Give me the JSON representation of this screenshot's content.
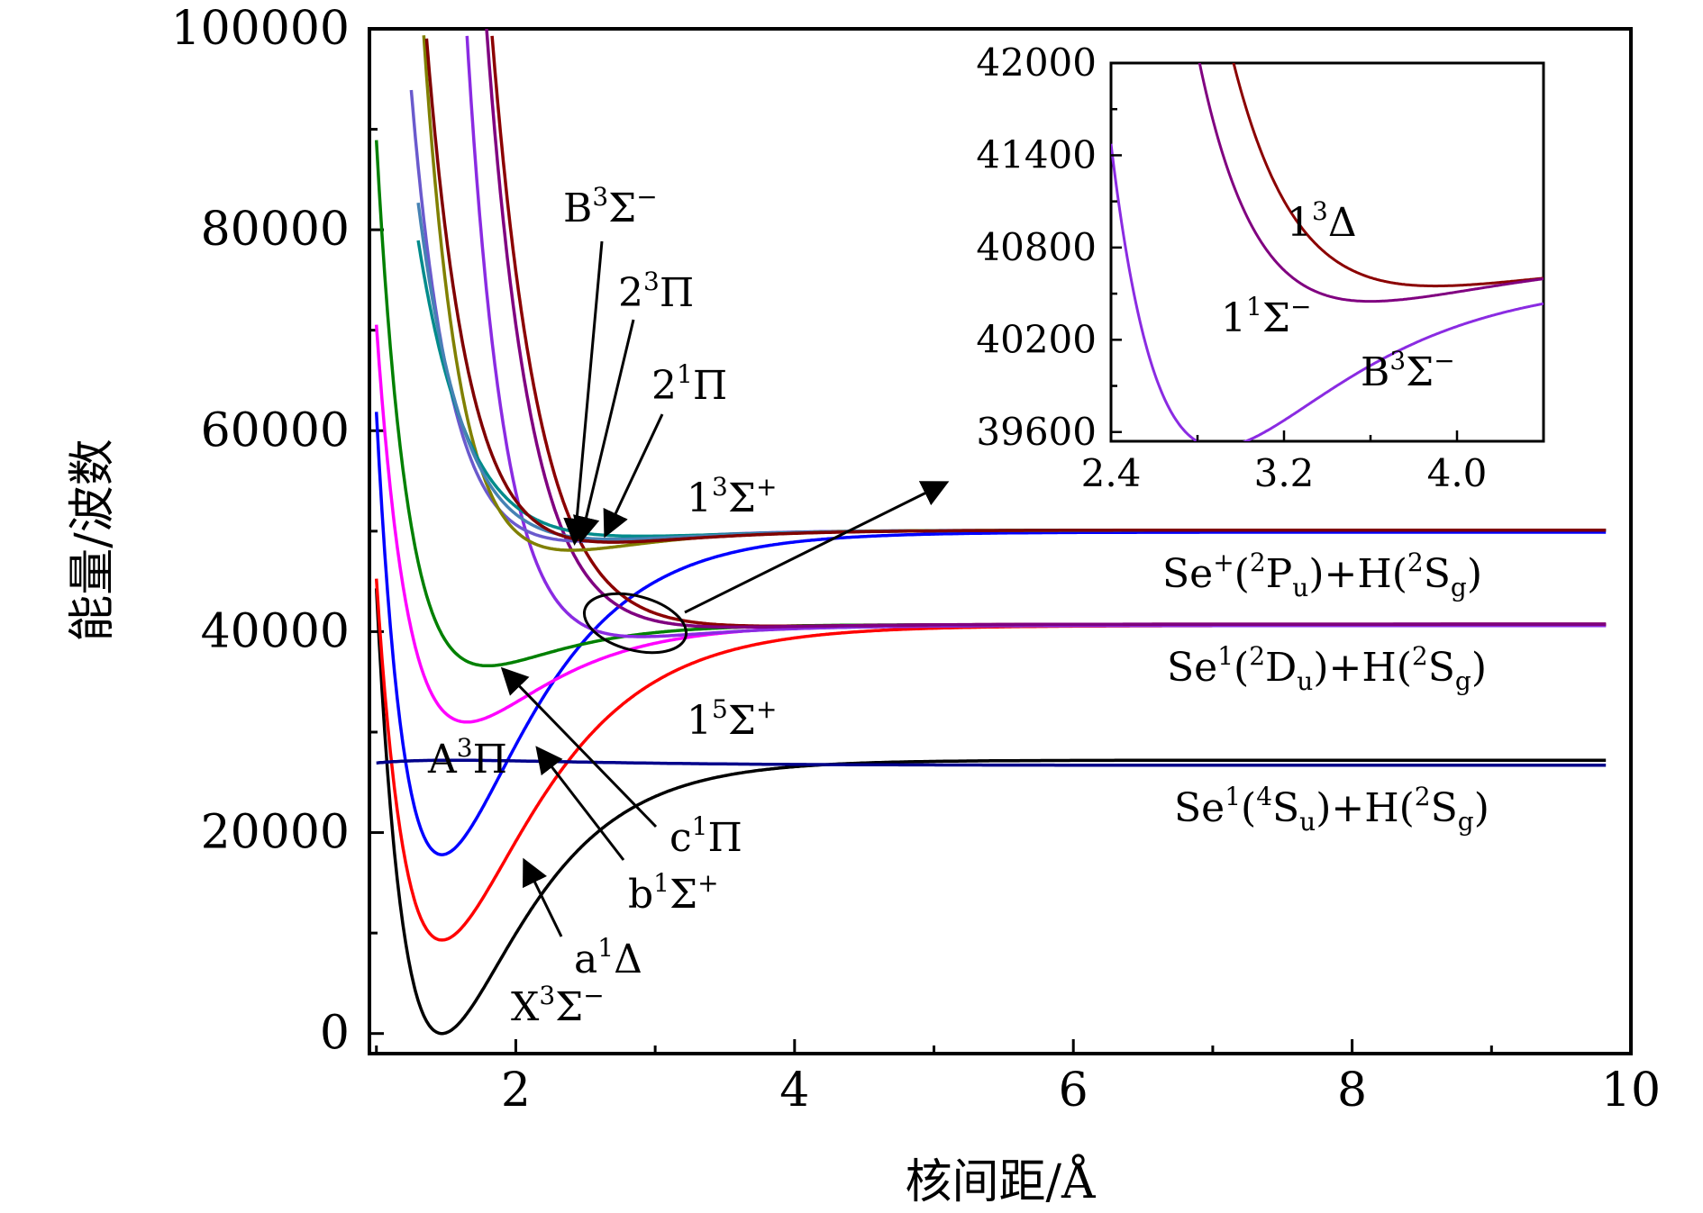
{
  "chart_data": {
    "type": "line",
    "xlabel": "核间距/Å",
    "ylabel": "能量/波数",
    "xlim": [
      0.95,
      10
    ],
    "ylim": [
      -2000,
      100000
    ],
    "xticks": [
      2,
      4,
      6,
      8,
      10
    ],
    "yticks": [
      0,
      20000,
      40000,
      60000,
      80000,
      100000
    ],
    "x_tick_labels": [
      "2",
      "4",
      "6",
      "8",
      "10"
    ],
    "y_tick_labels": [
      "0",
      "20000",
      "40000",
      "60000",
      "80000",
      "100000"
    ],
    "series": [
      {
        "name": "X3Σ−",
        "color": "#000000",
        "Te": 0,
        "re": 1.47,
        "De": 27200,
        "a": 1.75,
        "x_start": 1.0
      },
      {
        "name": "a1Δ",
        "color": "#ff0000",
        "Te": 9300,
        "re": 1.47,
        "De": 31300,
        "a": 1.55,
        "x_start": 1.0
      },
      {
        "name": "b1Σ+",
        "color": "#0000ff",
        "Te": 17800,
        "re": 1.47,
        "De": 32100,
        "a": 1.65,
        "x_start": 1.0
      },
      {
        "name": "A3Π",
        "color": "#ff00ff",
        "Te": 31000,
        "re": 1.65,
        "De": 9700,
        "a": 1.7,
        "x_start": 1.0
      },
      {
        "name": "c1Π",
        "color": "#008000",
        "Te": 36600,
        "re": 1.8,
        "De": 4100,
        "a": 1.9,
        "x_start": 1.0
      },
      {
        "name": "15Σ+",
        "color": "#00008b",
        "Te": 27200,
        "re": 1.55,
        "De": -500,
        "a": 1.0,
        "x_start": 1.0
      },
      {
        "name": "B3Σ−",
        "color": "#8a2be2",
        "Te": 39500,
        "re": 2.9,
        "De": 1100,
        "a": 1.7,
        "x_start": 1.2
      },
      {
        "name": "13Δ",
        "color": "#8b0000",
        "Te": 40550,
        "re": 3.9,
        "De": 200,
        "a": 1.4,
        "x_start": 1.3
      },
      {
        "name": "11Σ−",
        "color": "#800080",
        "Te": 40450,
        "re": 3.6,
        "De": 300,
        "a": 1.5,
        "x_start": 1.3
      },
      {
        "name": "21Π",
        "color": "#6a5acd",
        "Te": 49000,
        "re": 2.5,
        "De": 1100,
        "a": 1.6,
        "x_start": 1.25
      },
      {
        "name": "23Π",
        "color": "#808000",
        "Te": 48100,
        "re": 2.4,
        "De": 2000,
        "a": 1.7,
        "x_start": 1.2
      },
      {
        "name": "13Σ+",
        "color": "#008b8b",
        "Te": 49500,
        "re": 2.9,
        "De": 600,
        "a": 1.3,
        "x_start": 1.3
      },
      {
        "name": "",
        "color": "#4682b4",
        "Te": 49200,
        "re": 2.7,
        "De": 900,
        "a": 1.4,
        "x_start": 1.3
      },
      {
        "name": "",
        "color": "#800000",
        "Te": 48900,
        "re": 2.7,
        "De": 1200,
        "a": 1.5,
        "x_start": 1.35
      }
    ],
    "asymptotes": [
      {
        "label": "Se+(2Pu)+H(2Sg)",
        "energy": 50100
      },
      {
        "label": "Se1(2Du)+H(2Sg)",
        "energy": 40700
      },
      {
        "label": "Se1(4Su)+H(2Sg)",
        "energy": 27200
      }
    ],
    "inset": {
      "xlim": [
        2.4,
        4.4
      ],
      "ylim": [
        39540,
        42000
      ],
      "xticks": [
        2.4,
        3.2,
        4.0
      ],
      "yticks": [
        39600,
        40200,
        40800,
        41400,
        42000
      ],
      "x_tick_labels": [
        "2.4",
        "3.2",
        "4.0"
      ],
      "y_tick_labels": [
        "39600",
        "40200",
        "40800",
        "41400",
        "42000"
      ],
      "series": [
        "13Δ",
        "11Σ−",
        "B3Σ−"
      ],
      "labels": [
        "13Δ",
        "11Σ−",
        "B3Σ−"
      ]
    }
  },
  "labels": {
    "B3Sigma_minus": {
      "main": "B",
      "sup": "3",
      "tail": "Σ",
      "sup2": "−"
    },
    "2_3Pi": {
      "main": "2",
      "sup": "3",
      "tail": "Π",
      "sup2": ""
    },
    "2_1Pi": {
      "main": "2",
      "sup": "1",
      "tail": "Π",
      "sup2": ""
    },
    "1_3Sigma_plus": {
      "main": "1",
      "sup": "3",
      "tail": "Σ",
      "sup2": "+"
    },
    "1_5Sigma_plus": {
      "main": "1",
      "sup": "5",
      "tail": "Σ",
      "sup2": "+"
    },
    "A3Pi": {
      "main": "A",
      "sup": "3",
      "tail": "Π",
      "sup2": ""
    },
    "c1Pi": {
      "main": "c",
      "sup": "1",
      "tail": "Π",
      "sup2": ""
    },
    "b1Sigma_plus": {
      "main": "b",
      "sup": "1",
      "tail": "Σ",
      "sup2": "+"
    },
    "a1Delta": {
      "main": "a",
      "sup": "1",
      "tail": "Δ",
      "sup2": ""
    },
    "X3Sigma_minus": {
      "main": "X",
      "sup": "3",
      "tail": "Σ",
      "sup2": "−"
    },
    "inset_13Delta": {
      "main": "1",
      "sup": "3",
      "tail": "Δ",
      "sup2": ""
    },
    "inset_11Sigma_minus": {
      "main": "1",
      "sup": "1",
      "tail": "Σ",
      "sup2": "−"
    },
    "inset_B3Sigma_minus": {
      "main": "B",
      "sup": "3",
      "tail": "Σ",
      "sup2": "−"
    }
  },
  "asym_labels": {
    "se_plus": {
      "a": "Se",
      "b": "+",
      "c": "(",
      "d": "2",
      "e": "P",
      "f": "u",
      "g": ")+H(",
      "h": "2",
      "i": "S",
      "j": "g",
      "k": ")"
    },
    "se_2d": {
      "a": "Se",
      "b": "1",
      "c": "(",
      "d": "2",
      "e": "D",
      "f": "u",
      "g": ")+H(",
      "h": "2",
      "i": "S",
      "j": "g",
      "k": ")"
    },
    "se_4s": {
      "a": "Se",
      "b": "1",
      "c": "(",
      "d": "4",
      "e": "S",
      "f": "u",
      "g": ")+H(",
      "h": "2",
      "i": "S",
      "j": "g",
      "k": ")"
    }
  }
}
